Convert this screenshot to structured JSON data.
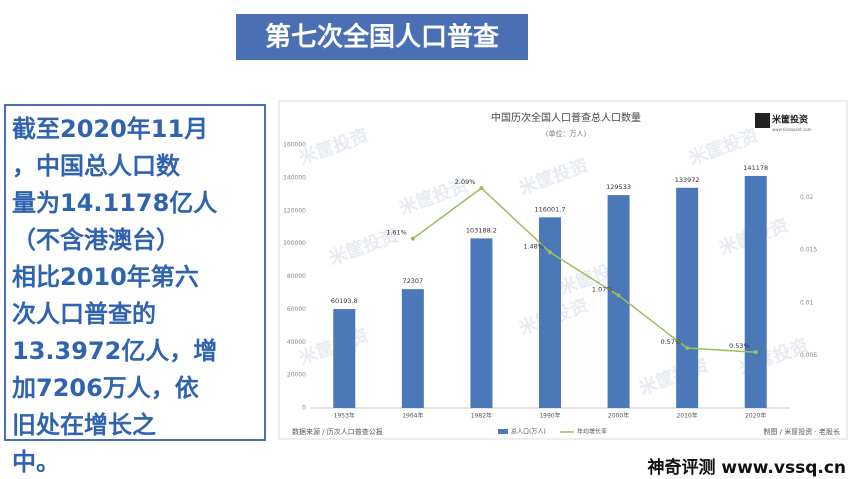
{
  "slide_title": "第七次全国人口普查",
  "text_lines": [
    "截至2020年11月",
    "，中国总人口数",
    "量为14.1178亿人",
    "（不含港澳台）",
    "相比2010年第六",
    "次人口普查的",
    "13.3972亿人，增",
    "加7206万人，依",
    "旧处在增长之",
    "中。"
  ],
  "footer": "神奇评测 www.vssq.cn",
  "watermark": "米筐投资",
  "logo": {
    "name": "米筐投资",
    "url": "www.ricequant.com"
  },
  "source": "数据来源 / 历次人口普查公报",
  "credit": "制图 / 米筐投资 · 老股长",
  "chart_data": {
    "type": "bar",
    "title": "中国历次全国人口普查总人口数量",
    "subtitle": "(单位：万人)",
    "categories": [
      "1953年",
      "1964年",
      "1982年",
      "1990年",
      "2000年",
      "2010年",
      "2020年"
    ],
    "series": [
      {
        "name": "总人口(万人)",
        "color": "#4a78b8",
        "values": [
          60193.8,
          72307,
          103188.2,
          116001.7,
          129533,
          133972,
          141178
        ]
      },
      {
        "name": "年均增长率",
        "color": "#9bbf5a",
        "axis": "y2",
        "type": "line",
        "values": [
          null,
          0.0161,
          0.0209,
          0.0148,
          0.0107,
          0.0057,
          0.0053
        ],
        "value_labels": [
          null,
          "1.61%",
          "2.09%",
          "1.48%",
          "1.07%",
          "0.57%",
          "0.53%"
        ]
      }
    ],
    "ylim": [
      0,
      160000
    ],
    "yticks": [
      0,
      20000,
      40000,
      60000,
      80000,
      100000,
      120000,
      140000,
      160000
    ],
    "y2lim": [
      0,
      0.025
    ],
    "y2ticks": [
      0.005,
      0.01,
      0.015,
      0.02
    ],
    "legend": "bottom"
  }
}
